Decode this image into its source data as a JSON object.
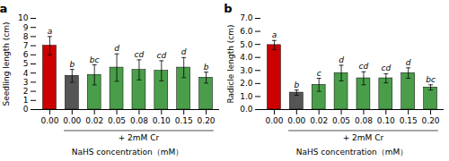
{
  "chart_data": [
    {
      "type": "bar",
      "title": "a",
      "ylabel": "Seedling length (cm)",
      "xlabel": "NaHS concentration（mM）",
      "categories": [
        "0.00",
        "0.00",
        "0.02",
        "0.05",
        "0.08",
        "0.10",
        "0.15",
        "0.20"
      ],
      "values": [
        7.0,
        3.7,
        3.8,
        4.6,
        4.35,
        4.25,
        4.6,
        3.5
      ],
      "errors": [
        1.0,
        0.7,
        1.1,
        1.5,
        1.1,
        1.1,
        1.1,
        0.6
      ],
      "letters": [
        "a",
        "b",
        "bc",
        "d",
        "cd",
        "cd",
        "d",
        "b"
      ],
      "colors": [
        "#cc0000",
        "#555555",
        "#4a9e4a",
        "#4a9e4a",
        "#4a9e4a",
        "#4a9e4a",
        "#4a9e4a",
        "#4a9e4a"
      ],
      "group": {
        "label": "+ 2mM Cr",
        "start": 1,
        "end": 7
      },
      "ylim": [
        0,
        10
      ],
      "yticks": [
        0,
        1,
        2,
        3,
        4,
        5,
        6,
        7,
        8,
        9,
        10
      ],
      "grid": false
    },
    {
      "type": "bar",
      "title": "b",
      "ylabel": "Radicle length (cm)",
      "xlabel": "NaHS concentration（mM）",
      "categories": [
        "0.00",
        "0.00",
        "0.02",
        "0.05",
        "0.08",
        "0.10",
        "0.15",
        "0.20"
      ],
      "values": [
        4.95,
        1.3,
        1.9,
        2.8,
        2.4,
        2.4,
        2.8,
        1.7
      ],
      "errors": [
        0.35,
        0.2,
        0.5,
        0.6,
        0.5,
        0.35,
        0.4,
        0.2
      ],
      "letters": [
        "a",
        "b",
        "c",
        "d",
        "cd",
        "cd",
        "d",
        "bc"
      ],
      "colors": [
        "#cc0000",
        "#555555",
        "#4a9e4a",
        "#4a9e4a",
        "#4a9e4a",
        "#4a9e4a",
        "#4a9e4a",
        "#4a9e4a"
      ],
      "group": {
        "label": "+ 2mM Cr",
        "start": 1,
        "end": 7
      },
      "ylim": [
        0,
        7
      ],
      "yticks": [
        0,
        1,
        2,
        3,
        4,
        5,
        6,
        7
      ],
      "grid": false
    }
  ]
}
